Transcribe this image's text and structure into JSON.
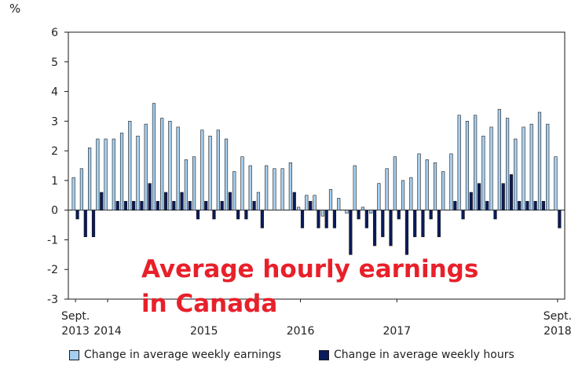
{
  "chart_data": {
    "type": "bar",
    "unit_label": "%",
    "ylim": [
      -3,
      6
    ],
    "yticks": [
      6,
      5,
      4,
      3,
      2,
      1,
      0,
      -1,
      -2,
      -3
    ],
    "x_tick_labels": [
      {
        "index": 0,
        "lines": [
          "Sept.",
          "2013"
        ]
      },
      {
        "index": 4,
        "lines": [
          "",
          "2014"
        ]
      },
      {
        "index": 16,
        "lines": [
          "",
          "2015"
        ]
      },
      {
        "index": 28,
        "lines": [
          "",
          "2016"
        ]
      },
      {
        "index": 40,
        "lines": [
          "",
          "2017"
        ]
      },
      {
        "index": 60,
        "lines": [
          "Sept.",
          "2018"
        ]
      }
    ],
    "grid": false,
    "legend_position": "bottom",
    "series": [
      {
        "name": "Change in average weekly earnings",
        "color": "#a6cfef",
        "values": [
          1.1,
          1.4,
          2.1,
          2.4,
          2.4,
          2.4,
          2.6,
          3.0,
          2.5,
          2.9,
          3.6,
          3.1,
          3.0,
          2.8,
          1.7,
          1.8,
          2.7,
          2.5,
          2.7,
          2.4,
          1.3,
          1.8,
          1.5,
          0.6,
          1.5,
          1.4,
          1.4,
          1.6,
          0.1,
          0.5,
          0.5,
          -0.2,
          0.7,
          0.4,
          -0.1,
          1.5,
          0.1,
          -0.1,
          0.9,
          1.4,
          1.8,
          1.0,
          1.1,
          1.9,
          1.7,
          1.6,
          1.3,
          1.9,
          3.2,
          3.0,
          3.2,
          2.5,
          2.8,
          3.4,
          3.1,
          2.4,
          2.8,
          2.9,
          3.3,
          2.9,
          1.8
        ]
      },
      {
        "name": "Change in average weekly hours",
        "color": "#0a1a5c",
        "values": [
          -0.3,
          -0.9,
          -0.9,
          0.6,
          0.0,
          0.3,
          0.3,
          0.3,
          0.3,
          0.9,
          0.3,
          0.6,
          0.3,
          0.6,
          0.3,
          -0.3,
          0.3,
          -0.3,
          0.3,
          0.6,
          -0.3,
          -0.3,
          0.3,
          -0.6,
          0.0,
          0.0,
          0.0,
          0.6,
          -0.6,
          0.3,
          -0.6,
          -0.6,
          -0.6,
          0.0,
          -1.5,
          -0.3,
          -0.6,
          -1.2,
          -0.9,
          -1.2,
          -0.3,
          -1.5,
          -0.9,
          -0.9,
          -0.3,
          -0.9,
          0.0,
          0.3,
          -0.3,
          0.6,
          0.9,
          0.3,
          -0.3,
          0.9,
          1.2,
          0.3,
          0.3,
          0.3,
          0.3,
          0.0,
          -0.6
        ]
      }
    ]
  },
  "overlay": {
    "line1": "Average hourly earnings",
    "line2": "in Canada"
  }
}
